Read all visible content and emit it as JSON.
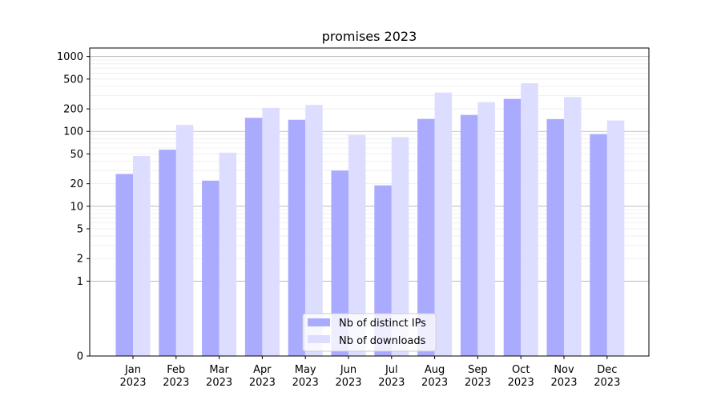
{
  "chart_data": {
    "type": "bar",
    "title": "promises 2023",
    "xlabel": "",
    "ylabel": "",
    "y_scale": "symlog",
    "ylim": [
      0,
      1300
    ],
    "y_ticks": [
      0,
      1,
      2,
      5,
      10,
      20,
      50,
      100,
      200,
      500,
      1000
    ],
    "categories": [
      "Jan\n2023",
      "Feb\n2023",
      "Mar\n2023",
      "Apr\n2023",
      "May\n2023",
      "Jun\n2023",
      "Jul\n2023",
      "Aug\n2023",
      "Sep\n2023",
      "Oct\n2023",
      "Nov\n2023",
      "Dec\n2023"
    ],
    "series": [
      {
        "name": "Nb of distinct IPs",
        "color": "#aaaaff",
        "values": [
          27,
          57,
          22,
          152,
          143,
          30,
          19,
          147,
          166,
          272,
          146,
          92
        ]
      },
      {
        "name": "Nb of downloads",
        "color": "#ddddff",
        "values": [
          47,
          122,
          52,
          206,
          226,
          90,
          84,
          330,
          246,
          440,
          288,
          140
        ]
      }
    ],
    "legend_position": "bottom-center",
    "grid": true
  }
}
